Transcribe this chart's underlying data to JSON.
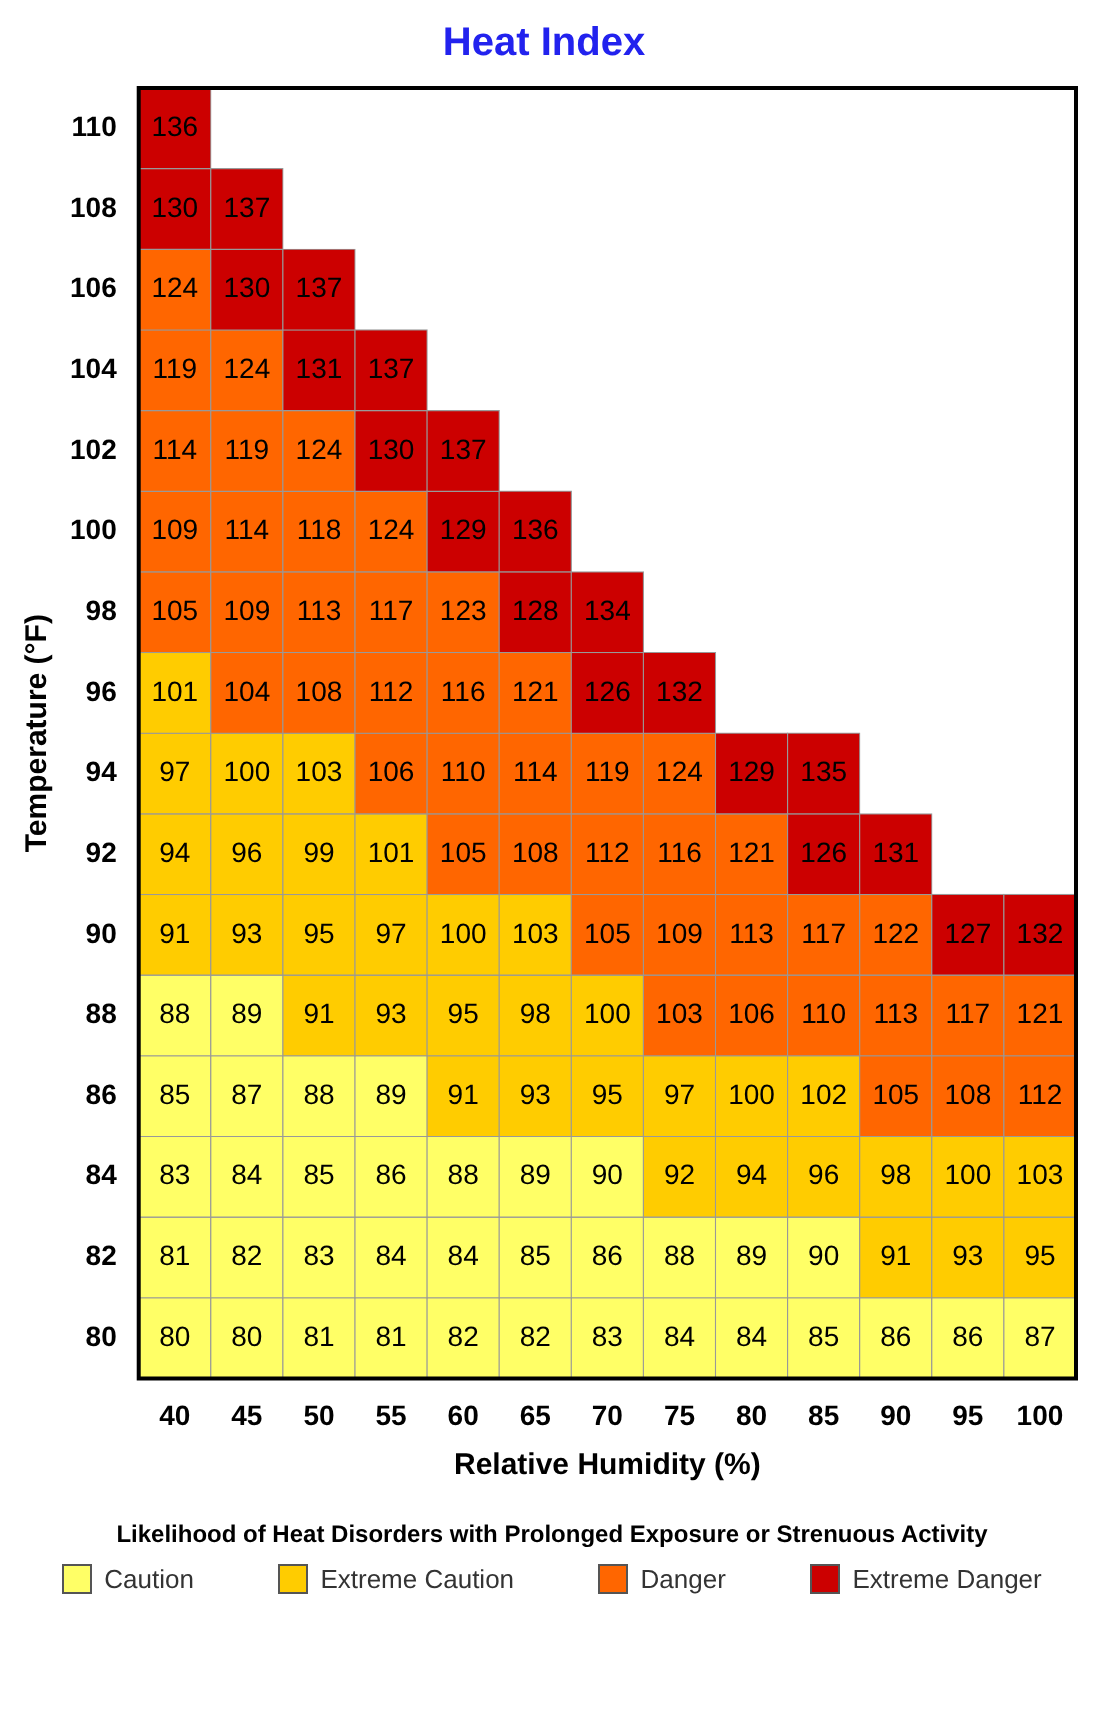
{
  "chart_data": {
    "type": "heatmap",
    "title": "Heat Index",
    "xlabel": "Relative Humidity (%)",
    "ylabel": "Temperature (°F)",
    "legend_title": "Likelihood of Heat Disorders with Prolonged Exposure or Strenuous Activity",
    "data_labels": true,
    "categories": [
      "40",
      "45",
      "50",
      "55",
      "60",
      "65",
      "70",
      "75",
      "80",
      "85",
      "90",
      "95",
      "100"
    ],
    "y_categories": [
      "110",
      "108",
      "106",
      "104",
      "102",
      "100",
      "98",
      "96",
      "94",
      "92",
      "90",
      "88",
      "86",
      "84",
      "82",
      "80"
    ],
    "cells": [
      [
        136,
        null,
        null,
        null,
        null,
        null,
        null,
        null,
        null,
        null,
        null,
        null,
        null
      ],
      [
        130,
        137,
        null,
        null,
        null,
        null,
        null,
        null,
        null,
        null,
        null,
        null,
        null
      ],
      [
        124,
        130,
        137,
        null,
        null,
        null,
        null,
        null,
        null,
        null,
        null,
        null,
        null
      ],
      [
        119,
        124,
        131,
        137,
        null,
        null,
        null,
        null,
        null,
        null,
        null,
        null,
        null
      ],
      [
        114,
        119,
        124,
        130,
        137,
        null,
        null,
        null,
        null,
        null,
        null,
        null,
        null
      ],
      [
        109,
        114,
        118,
        124,
        129,
        136,
        null,
        null,
        null,
        null,
        null,
        null,
        null
      ],
      [
        105,
        109,
        113,
        117,
        123,
        128,
        134,
        null,
        null,
        null,
        null,
        null,
        null
      ],
      [
        101,
        104,
        108,
        112,
        116,
        121,
        126,
        132,
        null,
        null,
        null,
        null,
        null
      ],
      [
        97,
        100,
        103,
        106,
        110,
        114,
        119,
        124,
        129,
        135,
        null,
        null,
        null
      ],
      [
        94,
        96,
        99,
        101,
        105,
        108,
        112,
        116,
        121,
        126,
        131,
        null,
        null
      ],
      [
        91,
        93,
        95,
        97,
        100,
        103,
        105,
        109,
        113,
        117,
        122,
        127,
        132
      ],
      [
        88,
        89,
        91,
        93,
        95,
        98,
        100,
        103,
        106,
        110,
        113,
        117,
        121
      ],
      [
        85,
        87,
        88,
        89,
        91,
        93,
        95,
        97,
        100,
        102,
        105,
        108,
        112
      ],
      [
        83,
        84,
        85,
        86,
        88,
        89,
        90,
        92,
        94,
        96,
        98,
        100,
        103
      ],
      [
        81,
        82,
        83,
        84,
        84,
        85,
        86,
        88,
        89,
        90,
        91,
        93,
        95
      ],
      [
        80,
        80,
        81,
        81,
        82,
        82,
        83,
        84,
        84,
        85,
        86,
        86,
        87
      ]
    ],
    "colors": [
      [
        "#cc0000",
        null,
        null,
        null,
        null,
        null,
        null,
        null,
        null,
        null,
        null,
        null,
        null
      ],
      [
        "#cc0000",
        "#cc0000",
        null,
        null,
        null,
        null,
        null,
        null,
        null,
        null,
        null,
        null,
        null
      ],
      [
        "#ff6600",
        "#cc0000",
        "#cc0000",
        null,
        null,
        null,
        null,
        null,
        null,
        null,
        null,
        null,
        null
      ],
      [
        "#ff6600",
        "#ff6600",
        "#cc0000",
        "#cc0000",
        null,
        null,
        null,
        null,
        null,
        null,
        null,
        null,
        null
      ],
      [
        "#ff6600",
        "#ff6600",
        "#ff6600",
        "#cc0000",
        "#cc0000",
        null,
        null,
        null,
        null,
        null,
        null,
        null,
        null
      ],
      [
        "#ff6600",
        "#ff6600",
        "#ff6600",
        "#ff6600",
        "#cc0000",
        "#cc0000",
        null,
        null,
        null,
        null,
        null,
        null,
        null
      ],
      [
        "#ff6600",
        "#ff6600",
        "#ff6600",
        "#ff6600",
        "#ff6600",
        "#cc0000",
        "#cc0000",
        null,
        null,
        null,
        null,
        null,
        null
      ],
      [
        "#ffcc00",
        "#ff6600",
        "#ff6600",
        "#ff6600",
        "#ff6600",
        "#ff6600",
        "#cc0000",
        "#cc0000",
        null,
        null,
        null,
        null,
        null
      ],
      [
        "#ffcc00",
        "#ffcc00",
        "#ffcc00",
        "#ff6600",
        "#ff6600",
        "#ff6600",
        "#ff6600",
        "#ff6600",
        "#cc0000",
        "#cc0000",
        null,
        null,
        null
      ],
      [
        "#ffcc00",
        "#ffcc00",
        "#ffcc00",
        "#ffcc00",
        "#ff6600",
        "#ff6600",
        "#ff6600",
        "#ff6600",
        "#ff6600",
        "#cc0000",
        "#cc0000",
        null,
        null
      ],
      [
        "#ffcc00",
        "#ffcc00",
        "#ffcc00",
        "#ffcc00",
        "#ffcc00",
        "#ffcc00",
        "#ff6600",
        "#ff6600",
        "#ff6600",
        "#ff6600",
        "#ff6600",
        "#cc0000",
        "#cc0000"
      ],
      [
        "#ffff66",
        "#ffff66",
        "#ffcc00",
        "#ffcc00",
        "#ffcc00",
        "#ffcc00",
        "#ffcc00",
        "#ff6600",
        "#ff6600",
        "#ff6600",
        "#ff6600",
        "#ff6600",
        "#ff6600"
      ],
      [
        "#ffff66",
        "#ffff66",
        "#ffff66",
        "#ffff66",
        "#ffcc00",
        "#ffcc00",
        "#ffcc00",
        "#ffcc00",
        "#ffcc00",
        "#ffcc00",
        "#ff6600",
        "#ff6600",
        "#ff6600"
      ],
      [
        "#ffff66",
        "#ffff66",
        "#ffff66",
        "#ffff66",
        "#ffff66",
        "#ffff66",
        "#ffff66",
        "#ffcc00",
        "#ffcc00",
        "#ffcc00",
        "#ffcc00",
        "#ffcc00",
        "#ffcc00"
      ],
      [
        "#ffff66",
        "#ffff66",
        "#ffff66",
        "#ffff66",
        "#ffff66",
        "#ffff66",
        "#ffff66",
        "#ffff66",
        "#ffff66",
        "#ffff66",
        "#ffcc00",
        "#ffcc00",
        "#ffcc00"
      ],
      [
        "#ffff66",
        "#ffff66",
        "#ffff66",
        "#ffff66",
        "#ffff66",
        "#ffff66",
        "#ffff66",
        "#ffff66",
        "#ffff66",
        "#ffff66",
        "#ffff66",
        "#ffff66",
        "#ffff66"
      ]
    ],
    "annotations": [
      "Caution",
      "Extreme Caution",
      "Danger",
      "Extreme Danger"
    ]
  }
}
